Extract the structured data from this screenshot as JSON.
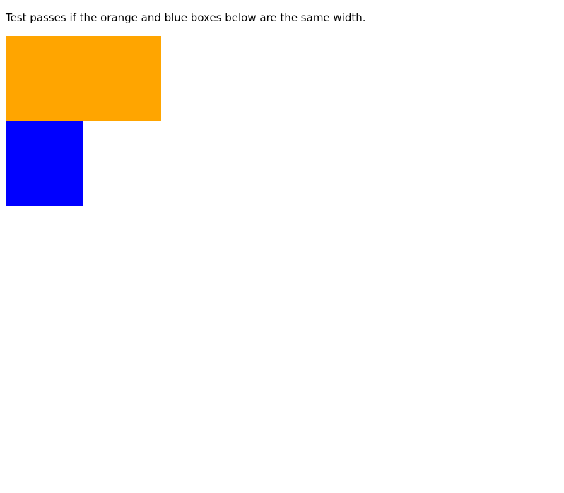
{
  "instruction_text": "Test passes if the orange and blue boxes below are the same width.",
  "colors": {
    "orange_box": "#FFA500",
    "blue_box": "#0000FF",
    "background": "#FFFFFF",
    "text": "#000000"
  }
}
